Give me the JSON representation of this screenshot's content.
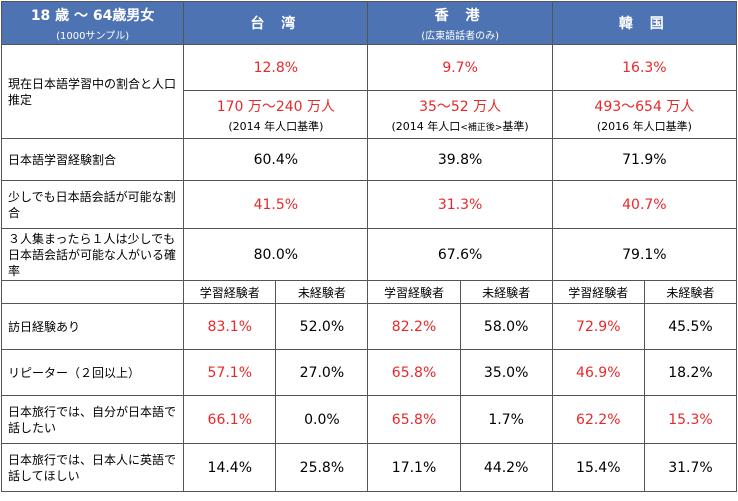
{
  "header": {
    "group": "18 歳 〜 64歳男女",
    "group_sub": "(1000サンプル)",
    "regions": [
      {
        "name": "台 湾",
        "sub": ""
      },
      {
        "name": "香 港",
        "sub": "(広東語話者のみ)"
      },
      {
        "name": "韓 国",
        "sub": ""
      }
    ]
  },
  "row_learning": {
    "label": "現在日本語学習中の割合と人口推定",
    "taiwan": {
      "pct": "12.8%",
      "pop": "170 万〜240 万人",
      "note": "(2014 年人口基準)"
    },
    "hongkong": {
      "pct": "9.7%",
      "pop": "35〜52 万人",
      "note_a": "(2014 年人口",
      "note_small": "<補正後>",
      "note_b": "基準)"
    },
    "korea": {
      "pct": "16.3%",
      "pop": "493〜654 万人",
      "note": "(2016 年人口基準)"
    }
  },
  "rows_simple": [
    {
      "label": "日本語学習経験割合",
      "values": [
        "60.4%",
        "39.8%",
        "71.9%"
      ],
      "red": false
    },
    {
      "label": "少しでも日本語会話が可能な割合",
      "values": [
        "41.5%",
        "31.3%",
        "40.7%"
      ],
      "red": true
    },
    {
      "label": "３人集まったら１人は少しでも日本語会話が可能な人がいる確率",
      "values": [
        "80.0%",
        "67.6%",
        "79.1%"
      ],
      "red": false
    }
  ],
  "subheaders": [
    "学習経験者",
    "未経験者",
    "学習経験者",
    "未経験者",
    "学習経験者",
    "未経験者"
  ],
  "rows_split": [
    {
      "label": "訪日経験あり",
      "values": [
        "83.1%",
        "52.0%",
        "82.2%",
        "58.0%",
        "72.9%",
        "45.5%"
      ],
      "red": [
        true,
        false,
        true,
        false,
        true,
        false
      ]
    },
    {
      "label": "リピーター（２回以上）",
      "values": [
        "57.1%",
        "27.0%",
        "65.8%",
        "35.0%",
        "46.9%",
        "18.2%"
      ],
      "red": [
        true,
        false,
        true,
        false,
        true,
        false
      ]
    },
    {
      "label": "日本旅行では、自分が日本語で話したい",
      "values": [
        "66.1%",
        "0.0%",
        "65.8%",
        "1.7%",
        "62.2%",
        "15.3%"
      ],
      "red": [
        true,
        false,
        true,
        false,
        true,
        true
      ]
    },
    {
      "label": "日本旅行では、日本人に英語で話してほしい",
      "values": [
        "14.4%",
        "25.8%",
        "17.1%",
        "44.2%",
        "15.4%",
        "31.7%"
      ],
      "red": [
        false,
        false,
        false,
        false,
        false,
        false
      ]
    }
  ],
  "colors": {
    "header_bg": "#4e73b2",
    "highlight": "#e8292b"
  }
}
